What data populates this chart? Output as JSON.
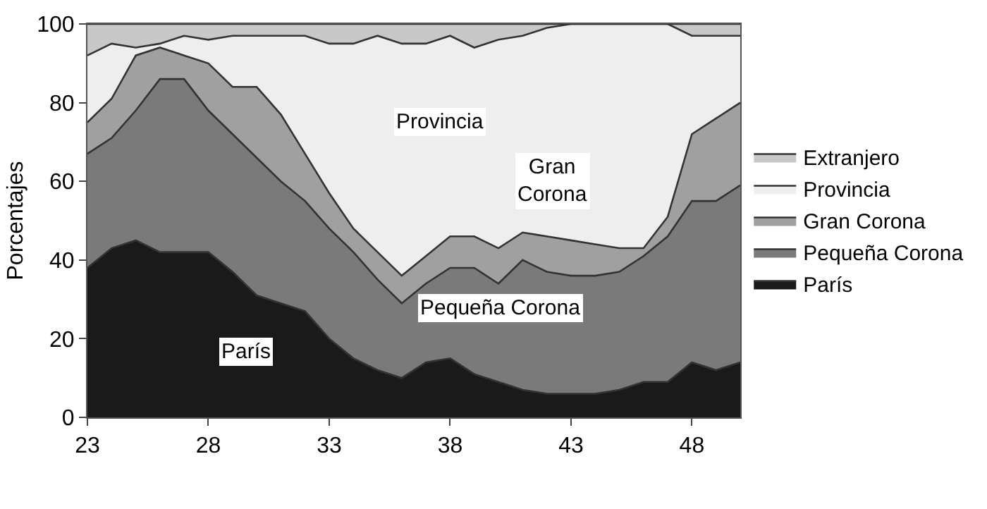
{
  "chart_data": {
    "type": "area",
    "stacked": true,
    "ylabel": "Porcentajes",
    "x": [
      23,
      24,
      25,
      26,
      27,
      28,
      29,
      30,
      31,
      32,
      33,
      34,
      35,
      36,
      37,
      38,
      39,
      40,
      41,
      42,
      43,
      44,
      45,
      46,
      47,
      48,
      49,
      50
    ],
    "xlim": [
      23,
      50
    ],
    "xticks": [
      23,
      28,
      33,
      38,
      43,
      48
    ],
    "ylim": [
      0,
      100
    ],
    "yticks": [
      0,
      20,
      40,
      60,
      80,
      100
    ],
    "legend": "right",
    "marker": "none",
    "series": [
      {
        "name": "París",
        "color": "#1a1a1a",
        "values": [
          38,
          43,
          45,
          42,
          42,
          42,
          37,
          31,
          29,
          27,
          20,
          15,
          12,
          10,
          14,
          15,
          11,
          9,
          7,
          6,
          6,
          6,
          7,
          9,
          9,
          14,
          12,
          14
        ]
      },
      {
        "name": "Pequeña Corona",
        "color": "#7a7a7a",
        "values": [
          29,
          28,
          33,
          44,
          44,
          36,
          35,
          35,
          31,
          28,
          28,
          27,
          23,
          19,
          20,
          23,
          27,
          25,
          33,
          31,
          30,
          30,
          30,
          32,
          37,
          41,
          43,
          45
        ]
      },
      {
        "name": "Gran Corona",
        "color": "#a0a0a0",
        "values": [
          8,
          10,
          14,
          8,
          6,
          12,
          12,
          18,
          17,
          12,
          9,
          6,
          7,
          7,
          7,
          8,
          8,
          9,
          7,
          9,
          9,
          8,
          6,
          2,
          5,
          17,
          21,
          21
        ]
      },
      {
        "name": "Provincia",
        "color": "#eeeeee",
        "values": [
          17,
          14,
          2,
          1,
          5,
          6,
          13,
          13,
          20,
          30,
          38,
          47,
          55,
          59,
          54,
          51,
          48,
          53,
          50,
          53,
          55,
          56,
          57,
          57,
          49,
          25,
          21,
          17
        ]
      },
      {
        "name": "Extranjero",
        "color": "#c8c8c8",
        "values": [
          8,
          5,
          6,
          5,
          3,
          4,
          3,
          3,
          3,
          3,
          5,
          5,
          3,
          5,
          5,
          3,
          6,
          4,
          3,
          1,
          0,
          0,
          0,
          0,
          0,
          3,
          3,
          3
        ]
      }
    ],
    "annotations": [
      "Provincia",
      "Gran\nCorona",
      "Pequeña Corona",
      "París"
    ]
  }
}
